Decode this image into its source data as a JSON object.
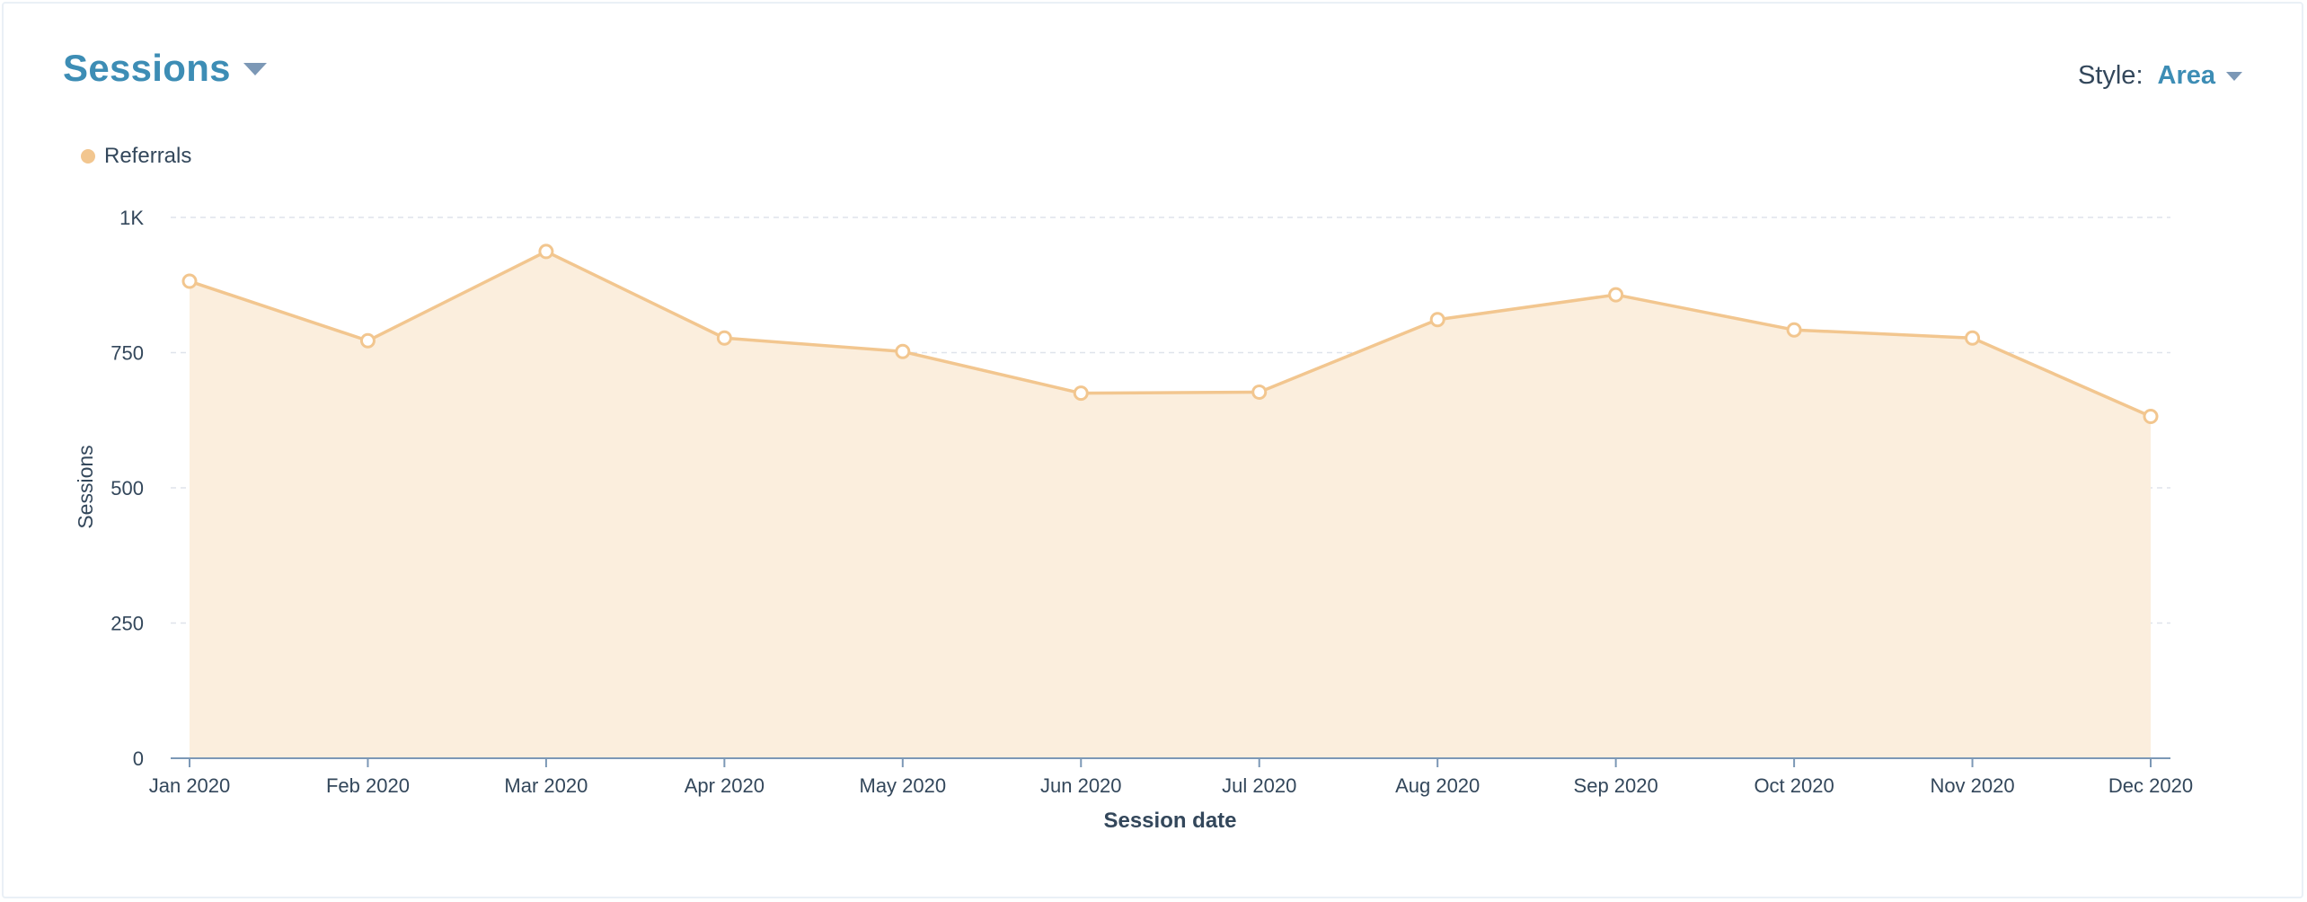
{
  "report": {
    "title": "Sessions",
    "style_label": "Style:",
    "style_value": "Area"
  },
  "colors": {
    "series_line": "#f2c68f",
    "series_fill": "#fbeedd",
    "title": "#3d8db5",
    "text": "#33475b",
    "grid": "#dfe3eb",
    "axis": "#7c98b6"
  },
  "chart_data": {
    "type": "area",
    "xlabel": "Session date",
    "ylabel": "Sessions",
    "ylim": [
      0,
      1000
    ],
    "yticks": [
      0,
      250,
      500,
      750,
      1000
    ],
    "ytick_labels": [
      "0",
      "250",
      "500",
      "750",
      "1K"
    ],
    "categories": [
      "Jan 2020",
      "Feb 2020",
      "Mar 2020",
      "Apr 2020",
      "May 2020",
      "Jun 2020",
      "Jul 2020",
      "Aug 2020",
      "Sep 2020",
      "Oct 2020",
      "Nov 2020",
      "Dec 2020"
    ],
    "series": [
      {
        "name": "Referrals",
        "values": [
          882,
          772,
          937,
          777,
          752,
          675,
          677,
          811,
          857,
          792,
          777,
          632
        ]
      }
    ],
    "legend": "top-left",
    "grid": true
  }
}
